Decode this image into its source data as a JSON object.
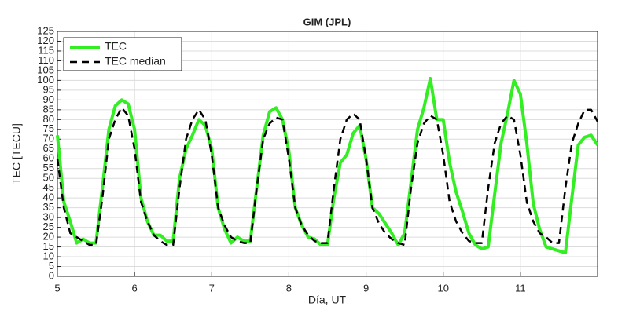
{
  "chart_data": {
    "type": "line",
    "title": "GIM (JPL)",
    "x_label": "Día, UT",
    "y_label": "TEC [TECU]",
    "x": [
      5,
      5.083,
      5.167,
      5.25,
      5.333,
      5.417,
      5.5,
      5.583,
      5.667,
      5.75,
      5.833,
      5.917,
      6,
      6.083,
      6.167,
      6.25,
      6.333,
      6.417,
      6.5,
      6.583,
      6.667,
      6.75,
      6.833,
      6.917,
      7,
      7.083,
      7.167,
      7.25,
      7.333,
      7.417,
      7.5,
      7.583,
      7.667,
      7.75,
      7.833,
      7.917,
      8,
      8.083,
      8.167,
      8.25,
      8.333,
      8.417,
      8.5,
      8.583,
      8.667,
      8.75,
      8.833,
      8.917,
      9,
      9.083,
      9.167,
      9.25,
      9.333,
      9.417,
      9.5,
      9.583,
      9.667,
      9.75,
      9.833,
      9.917,
      10,
      10.083,
      10.167,
      10.25,
      10.333,
      10.417,
      10.5,
      10.583,
      10.667,
      10.75,
      10.833,
      10.917,
      11,
      11.083,
      11.167,
      11.25,
      11.333,
      11.417,
      11.5,
      11.583,
      11.667,
      11.75,
      11.833,
      11.917,
      12
    ],
    "series": [
      {
        "name": "TEC",
        "color": "#33ee22",
        "dash": false,
        "values": [
          72,
          38,
          28,
          17,
          19,
          17,
          17,
          45,
          75,
          87,
          90,
          88,
          75,
          40,
          28,
          21,
          21,
          18,
          18,
          50,
          65,
          72,
          80,
          77,
          65,
          35,
          24,
          17,
          20,
          18,
          18,
          45,
          72,
          84,
          86,
          80,
          64,
          35,
          26,
          20,
          19,
          16,
          16,
          40,
          58,
          62,
          73,
          77,
          60,
          35,
          32,
          27,
          22,
          16,
          22,
          48,
          75,
          86,
          101,
          80,
          80,
          58,
          43,
          33,
          22,
          16,
          14,
          15,
          42,
          68,
          83,
          100,
          93,
          68,
          37,
          24,
          15,
          14,
          13,
          12,
          40,
          67,
          71,
          72,
          67
        ]
      },
      {
        "name": "TEC median",
        "color": "#000000",
        "dash": true,
        "values": [
          60,
          35,
          22,
          20,
          18,
          16,
          16,
          40,
          70,
          80,
          86,
          82,
          65,
          38,
          28,
          21,
          18,
          16,
          16,
          45,
          70,
          80,
          85,
          80,
          62,
          35,
          26,
          20,
          18,
          17,
          17,
          45,
          70,
          78,
          81,
          80,
          60,
          35,
          26,
          21,
          18,
          17,
          17,
          45,
          70,
          80,
          83,
          80,
          60,
          35,
          27,
          22,
          19,
          17,
          16,
          45,
          68,
          78,
          82,
          80,
          62,
          38,
          28,
          22,
          18,
          17,
          17,
          45,
          68,
          78,
          82,
          80,
          62,
          38,
          28,
          22,
          20,
          17,
          17,
          45,
          68,
          78,
          85,
          85,
          79
        ]
      }
    ],
    "xlim": [
      5,
      12
    ],
    "xticks": [
      5,
      6,
      7,
      8,
      9,
      10,
      11
    ],
    "ylim": [
      0,
      125
    ],
    "yticks": [
      0,
      5,
      10,
      15,
      20,
      25,
      30,
      35,
      40,
      45,
      50,
      55,
      60,
      65,
      70,
      75,
      80,
      85,
      90,
      95,
      100,
      105,
      110,
      115,
      120,
      125
    ],
    "grid": true,
    "legend": "upper left"
  }
}
